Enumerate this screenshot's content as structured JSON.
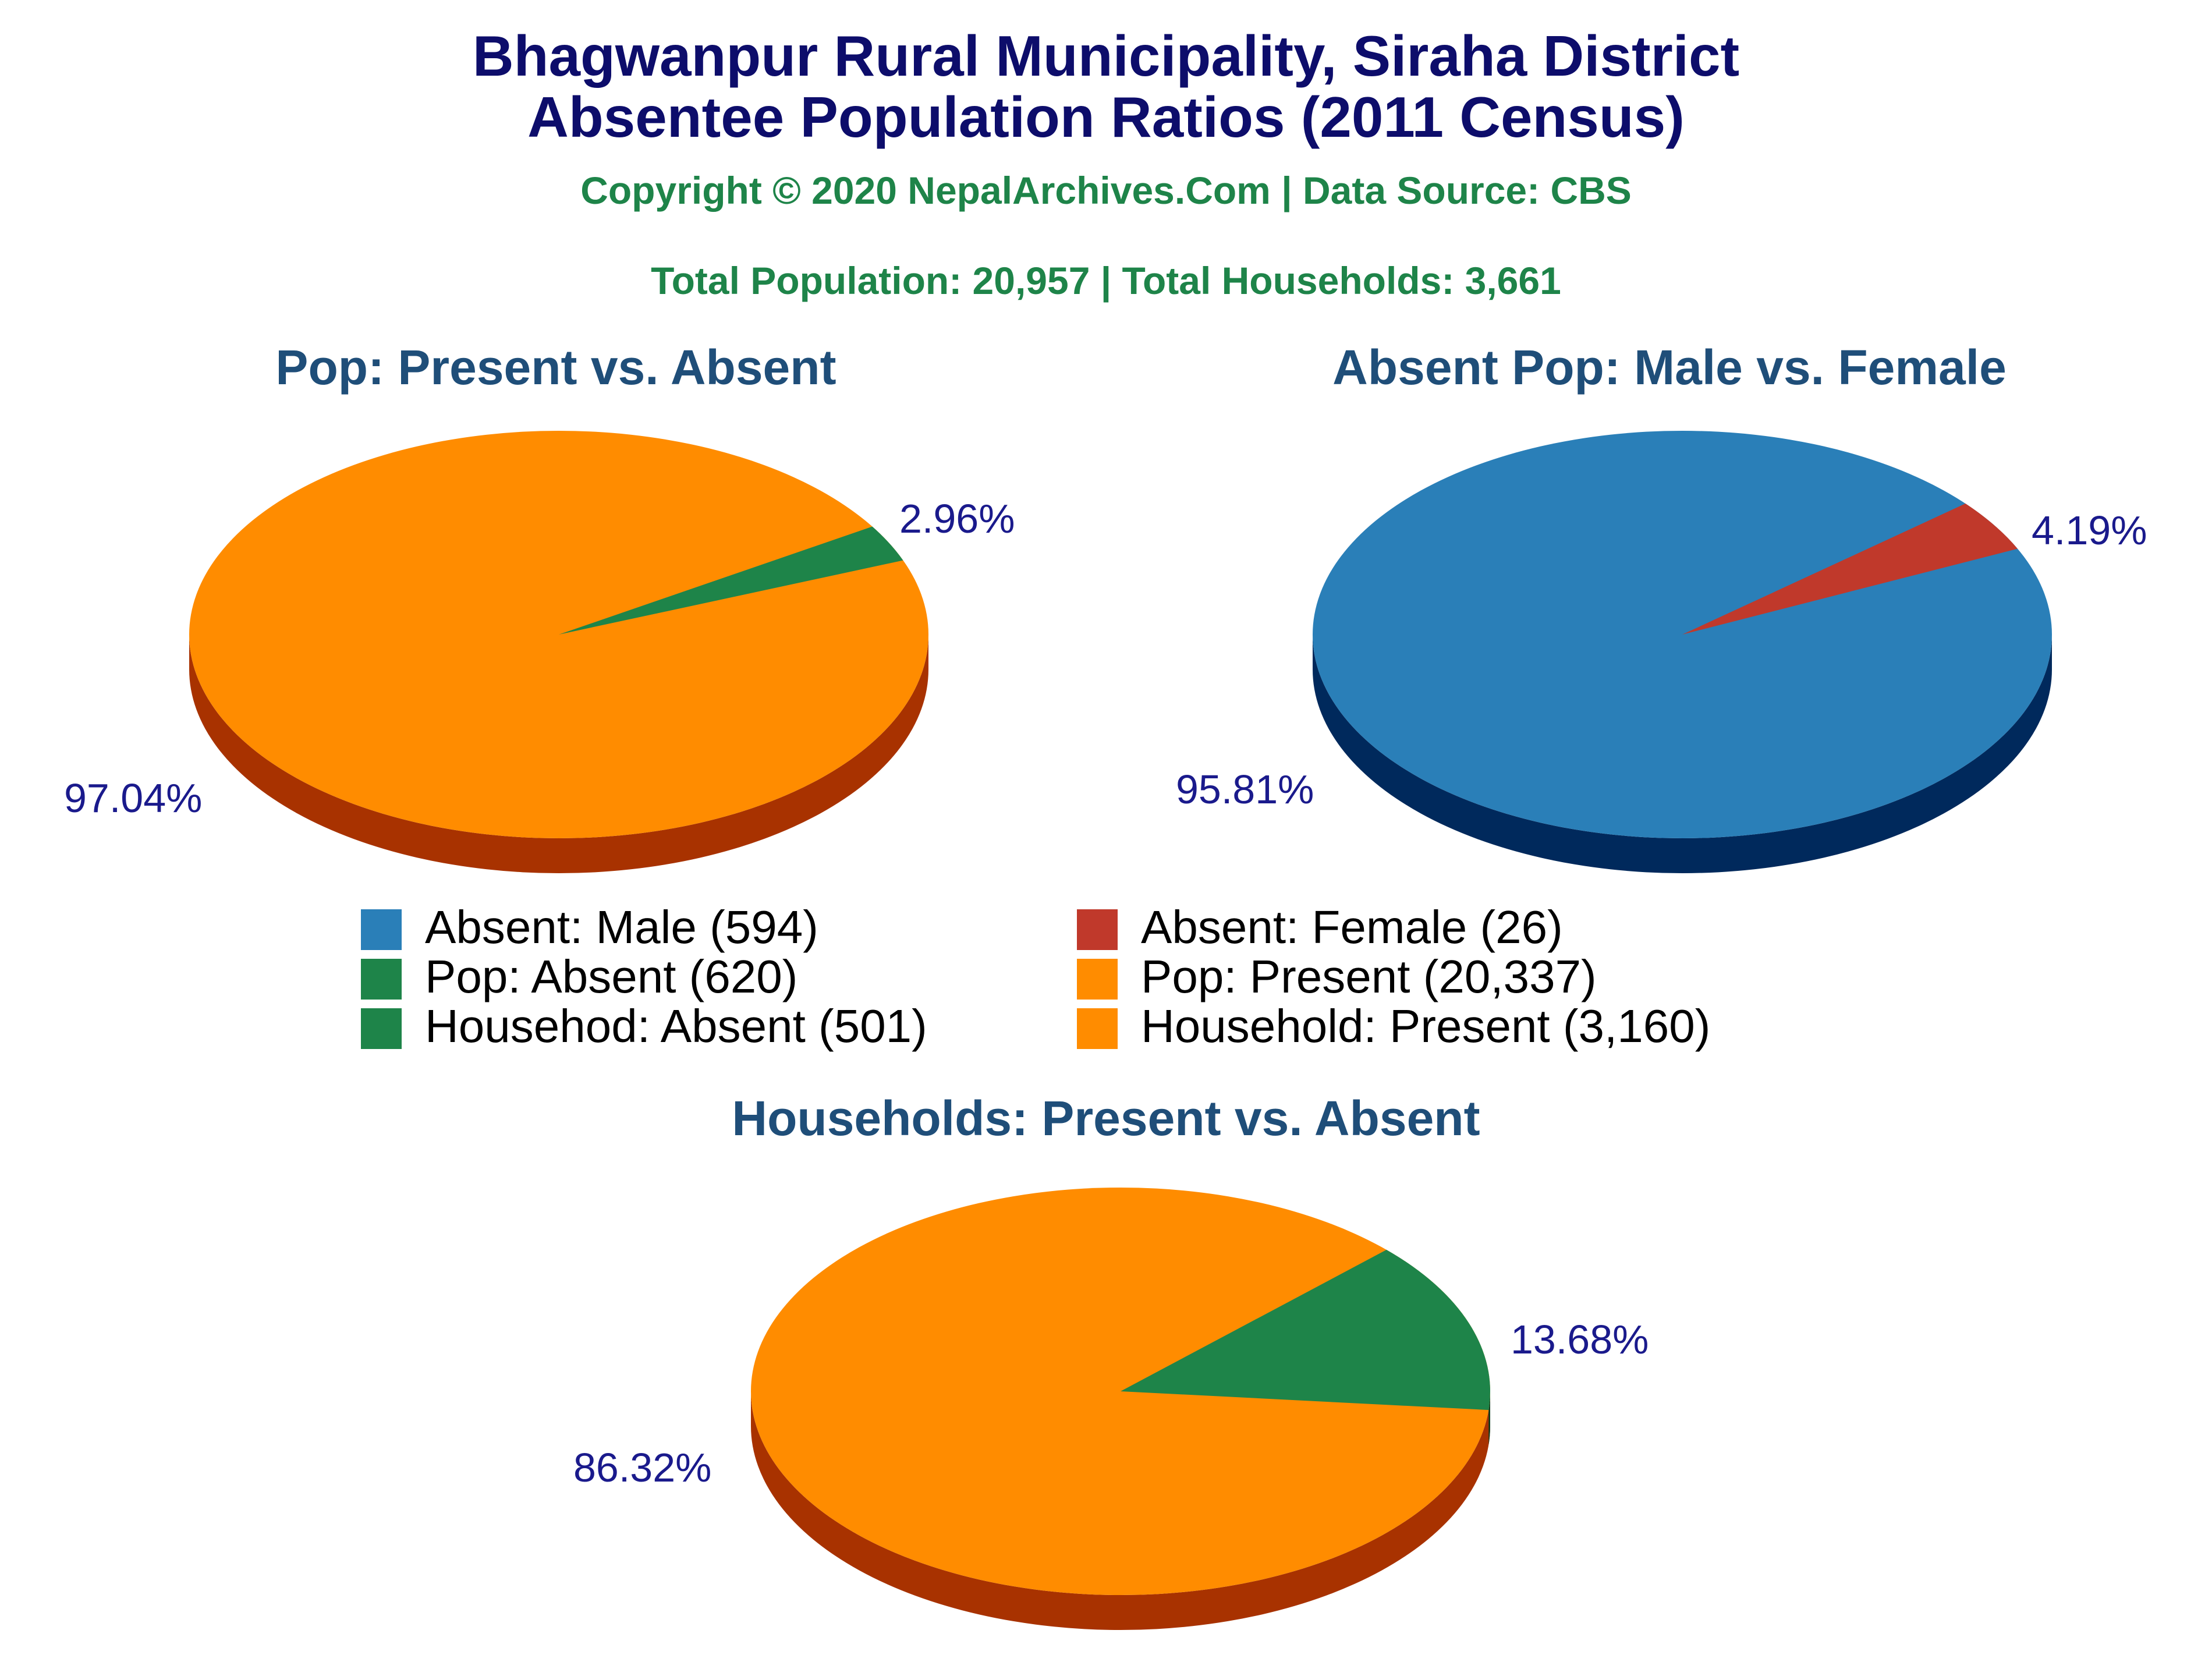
{
  "header": {
    "title_line1": "Bhagwanpur Rural Municipality, Siraha District",
    "title_line2": "Absentee Population Ratios (2011 Census)",
    "copyright": "Copyright © 2020 NepalArchives.Com | Data Source: CBS",
    "totals": "Total Population: 20,957 | Total Households: 3,661"
  },
  "colors": {
    "title": "#0d0d6b",
    "subtitle": "#1e8449",
    "pie_title": "#1f4e79",
    "percent_label": "#1a1a8c",
    "present": "#ff8c00",
    "present_side": "#a83200",
    "absent": "#1e8449",
    "absent_side": "#0f3d1f",
    "male": "#2a7fb8",
    "male_side": "#00295c",
    "female": "#c0392b",
    "female_side": "#6e1c14"
  },
  "chart_data": [
    {
      "type": "pie",
      "title": "Pop: Present vs. Absent",
      "slices": [
        {
          "label": "Pop: Present",
          "value": 20337,
          "percent_label": "97.04%",
          "color": "#ff8c00"
        },
        {
          "label": "Pop: Absent",
          "value": 620,
          "percent_label": "2.96%",
          "color": "#1e8449"
        }
      ]
    },
    {
      "type": "pie",
      "title": "Absent Pop: Male vs. Female",
      "slices": [
        {
          "label": "Absent: Male",
          "value": 594,
          "percent_label": "95.81%",
          "color": "#2a7fb8"
        },
        {
          "label": "Absent: Female",
          "value": 26,
          "percent_label": "4.19%",
          "color": "#c0392b"
        }
      ]
    },
    {
      "type": "pie",
      "title": "Households: Present vs. Absent",
      "slices": [
        {
          "label": "Household: Present",
          "value": 3160,
          "percent_label": "86.32%",
          "color": "#ff8c00"
        },
        {
          "label": "Househod: Absent",
          "value": 501,
          "percent_label": "13.68%",
          "color": "#1e8449"
        }
      ]
    }
  ],
  "legend": [
    {
      "text": "Absent: Male (594)",
      "color": "#2a7fb8"
    },
    {
      "text": "Absent: Female (26)",
      "color": "#c0392b"
    },
    {
      "text": "Pop: Absent (620)",
      "color": "#1e8449"
    },
    {
      "text": "Pop: Present (20,337)",
      "color": "#ff8c00"
    },
    {
      "text": "Househod: Absent (501)",
      "color": "#1e8449"
    },
    {
      "text": "Household: Present (3,160)",
      "color": "#ff8c00"
    }
  ]
}
